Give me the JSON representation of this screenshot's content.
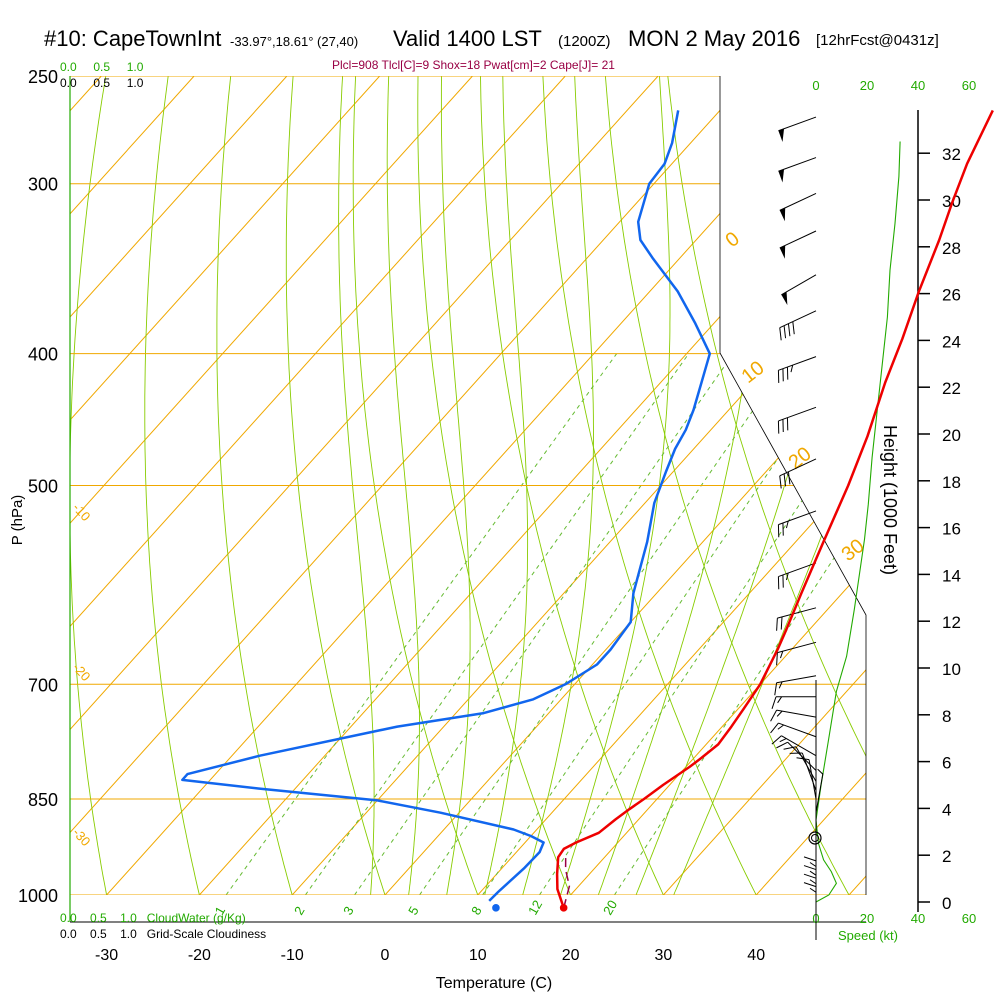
{
  "header": {
    "station": "#10: CapeTownInt",
    "coords": "-33.97°,18.61° (27,40)",
    "valid": "Valid 1400 LST",
    "utc": "(1200Z)",
    "date": "MON 2 May 2016",
    "forecast": "[12hrFcst@0431z]",
    "params": "Plcl=908 Tlcl[C]=9 Shox=18 Pwat[cm]=2 Cape[J]= 21"
  },
  "cloudwater_top": {
    "ticks": [
      "0.0",
      "0.5",
      "1.0"
    ]
  },
  "cloudiness_top": {
    "ticks": [
      "0.0",
      "0.5",
      "1.0"
    ]
  },
  "cloudwater_bottom": {
    "ticks": [
      "0.0",
      "0.5",
      "1.0"
    ],
    "label": "CloudWater (g/Kg)"
  },
  "cloudiness_bottom": {
    "ticks": [
      "0.0",
      "0.5",
      "1.0"
    ],
    "label": "Grid-Scale Cloudiness"
  },
  "colors": {
    "isobar": "#f0a800",
    "isotherm": "#f0a800",
    "dry_adiabat": "#88cc00",
    "moist_adiabat": "#88cc00",
    "mixing_ratio": "#66bb33",
    "temperature": "#ee0000",
    "dewpoint": "#1166ee",
    "wind_speed": "#22aa00",
    "label_green": "#22aa00"
  },
  "chart_data": {
    "type": "line",
    "title": "Skew-T log-P sounding",
    "xlabel": "Temperature (C)",
    "ylabel": "P (hPa)",
    "height_label": "Height (1000 Feet)",
    "speed_label": "Speed (kt)",
    "x_ticks": [
      -30,
      -20,
      -10,
      0,
      10,
      20,
      30,
      40
    ],
    "y_ticks": [
      250,
      300,
      400,
      500,
      700,
      850,
      1000
    ],
    "height_ticks": [
      0,
      2,
      4,
      6,
      8,
      10,
      12,
      14,
      16,
      18,
      20,
      22,
      24,
      26,
      28,
      30,
      32
    ],
    "speed_ticks": [
      0,
      20,
      40,
      60
    ],
    "isotherm_labels": [
      -30,
      -20,
      -10,
      0,
      10,
      20,
      30
    ],
    "mixing_ratio_labels": [
      1,
      2,
      3,
      5,
      8,
      12,
      20
    ],
    "series": [
      {
        "name": "temperature",
        "points": [
          [
            20.5,
            1022
          ],
          [
            18.0,
            990
          ],
          [
            16.5,
            965
          ],
          [
            15.0,
            938
          ],
          [
            14.8,
            925
          ],
          [
            15.5,
            915
          ],
          [
            17.0,
            900
          ],
          [
            17.5,
            880
          ],
          [
            18.0,
            865
          ],
          [
            18.6,
            850
          ],
          [
            19.3,
            830
          ],
          [
            20.4,
            805
          ],
          [
            20.8,
            793
          ],
          [
            21.3,
            775
          ],
          [
            21.0,
            752
          ],
          [
            20.6,
            730
          ],
          [
            20.0,
            700
          ],
          [
            18.5,
            660
          ],
          [
            17.6,
            640
          ],
          [
            15.6,
            600
          ],
          [
            13.0,
            550
          ],
          [
            10.2,
            500
          ],
          [
            7.5,
            460
          ],
          [
            4.2,
            420
          ],
          [
            1.8,
            390
          ],
          [
            -1.0,
            360
          ],
          [
            -3.8,
            330
          ],
          [
            -6.0,
            310
          ],
          [
            -8.2,
            290
          ],
          [
            -10.6,
            265
          ]
        ]
      },
      {
        "name": "dewpoint",
        "points": [
          [
            11.8,
            1010
          ],
          [
            11.9,
            995
          ],
          [
            12.4,
            955
          ],
          [
            12.5,
            930
          ],
          [
            12.0,
            915
          ],
          [
            10.0,
            905
          ],
          [
            7.5,
            895
          ],
          [
            -2.0,
            870
          ],
          [
            -10.0,
            852
          ],
          [
            -24.0,
            835
          ],
          [
            -33.0,
            823
          ],
          [
            -33.0,
            815
          ],
          [
            -27.0,
            790
          ],
          [
            -15.0,
            752
          ],
          [
            -7.0,
            735
          ],
          [
            -3.0,
            718
          ],
          [
            -1.0,
            700
          ],
          [
            0.5,
            677
          ],
          [
            0.5,
            660
          ],
          [
            0.0,
            630
          ],
          [
            -2.5,
            600
          ],
          [
            -6.0,
            550
          ],
          [
            -9.0,
            515
          ],
          [
            -10.8,
            488
          ],
          [
            -12.0,
            470
          ],
          [
            -12.7,
            455
          ],
          [
            -13.8,
            440
          ],
          [
            -15.6,
            420
          ],
          [
            -17.5,
            400
          ],
          [
            -22.0,
            380
          ],
          [
            -27.0,
            360
          ],
          [
            -33.0,
            340
          ],
          [
            -36.0,
            330
          ],
          [
            -38.0,
            320
          ],
          [
            -40.5,
            300
          ],
          [
            -40.8,
            290
          ],
          [
            -42.0,
            280
          ],
          [
            -44.5,
            265
          ]
        ]
      },
      {
        "name": "parcel",
        "points": [
          [
            20.5,
            1022
          ],
          [
            19.0,
            985
          ],
          [
            17.0,
            958
          ],
          [
            15.8,
            938
          ]
        ]
      }
    ],
    "surface_points": [
      {
        "name": "surface-temperature",
        "t": 20.5,
        "p": 1022
      },
      {
        "name": "surface-dewpoint",
        "t": 13.2,
        "p": 1022
      }
    ],
    "wind_speed_profile": [
      [
        0,
        0
      ],
      [
        5,
        0.3
      ],
      [
        8,
        0.8
      ],
      [
        6,
        1.3
      ],
      [
        3,
        1.8
      ],
      [
        1,
        2.5
      ],
      [
        0,
        3.5
      ],
      [
        2,
        5
      ],
      [
        5,
        7
      ],
      [
        8,
        9
      ],
      [
        12,
        10.5
      ],
      [
        15,
        12.5
      ],
      [
        17,
        14
      ],
      [
        19,
        15.5
      ],
      [
        20.5,
        17
      ],
      [
        22,
        19
      ],
      [
        24,
        21
      ],
      [
        26,
        23
      ],
      [
        28,
        25
      ],
      [
        29,
        27
      ],
      [
        31,
        29
      ],
      [
        32.5,
        31
      ],
      [
        33,
        32.5
      ]
    ],
    "wind_barbs": [
      {
        "p": 268,
        "dir": 290,
        "spd": 50
      },
      {
        "p": 287,
        "dir": 290,
        "spd": 50
      },
      {
        "p": 305,
        "dir": 295,
        "spd": 50
      },
      {
        "p": 325,
        "dir": 295,
        "spd": 50
      },
      {
        "p": 350,
        "dir": 300,
        "spd": 50
      },
      {
        "p": 372,
        "dir": 295,
        "spd": 40
      },
      {
        "p": 402,
        "dir": 290,
        "spd": 35
      },
      {
        "p": 438,
        "dir": 290,
        "spd": 30
      },
      {
        "p": 478,
        "dir": 295,
        "spd": 30
      },
      {
        "p": 522,
        "dir": 290,
        "spd": 25
      },
      {
        "p": 570,
        "dir": 290,
        "spd": 25
      },
      {
        "p": 615,
        "dir": 285,
        "spd": 20
      },
      {
        "p": 652,
        "dir": 285,
        "spd": 15
      },
      {
        "p": 690,
        "dir": 280,
        "spd": 15
      },
      {
        "p": 715,
        "dir": 270,
        "spd": 15
      },
      {
        "p": 740,
        "dir": 260,
        "spd": 15
      },
      {
        "p": 765,
        "dir": 250,
        "spd": 15
      },
      {
        "p": 790,
        "dir": 240,
        "spd": 15
      },
      {
        "p": 810,
        "dir": 225,
        "spd": 10
      },
      {
        "p": 825,
        "dir": 210,
        "spd": 10
      },
      {
        "p": 838,
        "dir": 200,
        "spd": 10
      },
      {
        "p": 850,
        "dir": 190,
        "spd": 10
      },
      {
        "p": 870,
        "dir": 170,
        "spd": 5
      },
      {
        "p": 1010,
        "dir": 180,
        "spd": 15
      },
      {
        "p": 1025,
        "dir": 180,
        "spd": 15
      },
      {
        "p": 1040,
        "dir": 180,
        "spd": 15
      },
      {
        "p": 1055,
        "dir": 180,
        "spd": 15
      }
    ],
    "lcl_marker": {
      "p": 908,
      "label": "LCL"
    }
  }
}
